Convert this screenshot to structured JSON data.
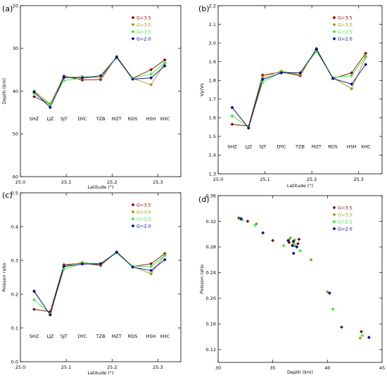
{
  "figure": {
    "panels": [
      {
        "id": "a",
        "panel_label": "(a)",
        "type": "line",
        "xlabel": "Latitude (°)",
        "ylabel": "Depth (km)",
        "xlim": [
          25.0,
          25.35
        ],
        "ylim": [
          20,
          60
        ],
        "y_inverted": true,
        "xticks": [
          25.0,
          25.1,
          25.2,
          25.3
        ],
        "xtick_labels": [
          "25.0",
          "25.1",
          "25.2",
          "25.3"
        ],
        "yticks": [
          20,
          30,
          40,
          50,
          60
        ],
        "ytick_labels": [
          "20",
          "30",
          "40",
          "50",
          "60"
        ],
        "station_label_value": 46.5,
        "stations": [
          "SHZ",
          "LJZ",
          "SJT",
          "DYC",
          "TZB",
          "MZT",
          "RDS",
          "HSH",
          "XHC"
        ],
        "x": [
          25.03,
          25.065,
          25.095,
          25.135,
          25.175,
          25.21,
          25.245,
          25.285,
          25.315
        ],
        "legend_position": "top-right",
        "series": [
          {
            "name": "G=3.5",
            "color": "#8b0000",
            "values": [
              41.3,
              43.1,
              36.5,
              37.4,
              37.3,
              31.9,
              37.0,
              35.0,
              32.7
            ]
          },
          {
            "name": "G=3.0",
            "color": "#9a9a00",
            "values": [
              40.0,
              43.0,
              36.8,
              36.6,
              36.9,
              32.0,
              37.0,
              38.5,
              33.5
            ]
          },
          {
            "name": "G=2.5",
            "color": "#33ee33",
            "values": [
              40.5,
              43.2,
              37.5,
              37.0,
              36.5,
              32.2,
              37.0,
              36.0,
              33.4
            ]
          },
          {
            "name": "G=2.0",
            "color": "#0000a0",
            "values": [
              40.2,
              43.8,
              36.8,
              36.9,
              36.4,
              32.1,
              37.2,
              36.9,
              34.1
            ]
          }
        ]
      },
      {
        "id": "b",
        "panel_label": "(b)",
        "type": "line",
        "xlabel": "Latitude (°)",
        "ylabel": "Vp/Vs",
        "xlim": [
          25.0,
          25.35
        ],
        "ylim": [
          1.3,
          2.2
        ],
        "y_inverted": false,
        "xticks": [
          25.0,
          25.1,
          25.2,
          25.3
        ],
        "xtick_labels": [
          "25.0",
          "25.1",
          "25.2",
          "25.3"
        ],
        "yticks": [
          1.3,
          1.4,
          1.5,
          1.6,
          1.7,
          1.8,
          1.9,
          2.0,
          2.1,
          2.2
        ],
        "ytick_labels": [
          "1.3",
          "1.4",
          "1.5",
          "1.6",
          "1.7",
          "1.8",
          "1.9",
          "2.0",
          "2.1",
          "2.2"
        ],
        "station_label_value": 1.445,
        "stations": [
          "SHZ",
          "LJZ",
          "SJT",
          "DYC",
          "TZB",
          "MZT",
          "RDS",
          "HSH",
          "XHC"
        ],
        "x": [
          25.03,
          25.065,
          25.095,
          25.135,
          25.175,
          25.21,
          25.245,
          25.285,
          25.315
        ],
        "legend_position": "top-right",
        "series": [
          {
            "name": "G=3.5",
            "color": "#8b0000",
            "values": [
              1.565,
              1.555,
              1.828,
              1.845,
              1.825,
              1.97,
              1.81,
              1.84,
              1.945
            ]
          },
          {
            "name": "G=3.0",
            "color": "#9a9a00",
            "values": [
              1.655,
              1.545,
              1.815,
              1.85,
              1.83,
              1.965,
              1.815,
              1.755,
              1.925
            ]
          },
          {
            "name": "G=2.5",
            "color": "#33ee33",
            "values": [
              1.61,
              1.55,
              1.79,
              1.845,
              1.84,
              1.955,
              1.815,
              1.825,
              1.93
            ]
          },
          {
            "name": "G=2.0",
            "color": "#0000a0",
            "values": [
              1.655,
              1.545,
              1.805,
              1.84,
              1.84,
              1.965,
              1.81,
              1.78,
              1.885
            ]
          }
        ]
      },
      {
        "id": "c",
        "panel_label": "(c)",
        "type": "line",
        "xlabel": "Latitude (°)",
        "ylabel": "Poisson ratio",
        "xlim": [
          25.0,
          25.35
        ],
        "ylim": [
          0.0,
          0.5
        ],
        "y_inverted": false,
        "xticks": [
          25.0,
          25.1,
          25.2,
          25.3
        ],
        "xtick_labels": [
          "25.0",
          "25.1",
          "25.2",
          "25.3"
        ],
        "yticks": [
          0.0,
          0.1,
          0.2,
          0.3,
          0.4,
          0.5
        ],
        "ytick_labels": [
          "0.0",
          "0.1",
          "0.2",
          "0.3",
          "0.4",
          "0.5"
        ],
        "station_label_value": 0.075,
        "stations": [
          "SHZ",
          "LJZ",
          "SJT",
          "DYC",
          "TZB",
          "MZT",
          "RDS",
          "HSH",
          "XHC"
        ],
        "x": [
          25.03,
          25.065,
          25.095,
          25.135,
          25.175,
          25.21,
          25.245,
          25.285,
          25.315
        ],
        "legend_position": "top-right",
        "series": [
          {
            "name": "G=3.5",
            "color": "#8b0000",
            "values": [
              0.155,
              0.148,
              0.287,
              0.292,
              0.285,
              0.325,
              0.282,
              0.29,
              0.32
            ]
          },
          {
            "name": "G=3.0",
            "color": "#9a9a00",
            "values": [
              0.21,
              0.138,
              0.283,
              0.294,
              0.287,
              0.324,
              0.282,
              0.26,
              0.316
            ]
          },
          {
            "name": "G=2.5",
            "color": "#33ee33",
            "values": [
              0.183,
              0.142,
              0.274,
              0.291,
              0.291,
              0.322,
              0.283,
              0.282,
              0.314
            ]
          },
          {
            "name": "G=2.0",
            "color": "#0000a0",
            "values": [
              0.208,
              0.139,
              0.282,
              0.289,
              0.29,
              0.324,
              0.28,
              0.27,
              0.302
            ]
          }
        ]
      },
      {
        "id": "d",
        "panel_label": "(d)",
        "type": "scatter",
        "xlabel": "Depth (km)",
        "ylabel": "Poisson ratio",
        "xlim": [
          30,
          45
        ],
        "ylim": [
          0.1,
          0.36
        ],
        "y_inverted": false,
        "xticks": [
          30,
          35,
          40,
          45
        ],
        "xtick_labels": [
          "30",
          "35",
          "40",
          "45"
        ],
        "yticks": [
          0.12,
          0.16,
          0.2,
          0.24,
          0.28,
          0.32,
          0.36
        ],
        "ytick_labels": [
          "0.12",
          "0.16",
          "0.20",
          "0.24",
          "0.28",
          "0.32",
          "0.36"
        ],
        "legend_position": "top-right",
        "series": [
          {
            "name": "G=3.5",
            "color": "#8b0000",
            "points": [
              [
                31.9,
                0.325
              ],
              [
                32.7,
                0.32
              ],
              [
                35.0,
                0.29
              ],
              [
                36.5,
                0.287
              ],
              [
                37.0,
                0.282
              ],
              [
                37.3,
                0.285
              ],
              [
                37.4,
                0.292
              ],
              [
                41.3,
                0.155
              ],
              [
                43.1,
                0.148
              ]
            ]
          },
          {
            "name": "G=3.0",
            "color": "#9a9a00",
            "points": [
              [
                32.0,
                0.324
              ],
              [
                33.5,
                0.316
              ],
              [
                36.6,
                0.294
              ],
              [
                36.8,
                0.283
              ],
              [
                36.9,
                0.287
              ],
              [
                37.0,
                0.282
              ],
              [
                38.5,
                0.26
              ],
              [
                40.0,
                0.21
              ],
              [
                43.0,
                0.138
              ]
            ]
          },
          {
            "name": "G=2.5",
            "color": "#33ee33",
            "points": [
              [
                32.2,
                0.322
              ],
              [
                33.4,
                0.314
              ],
              [
                36.0,
                0.282
              ],
              [
                36.5,
                0.291
              ],
              [
                37.0,
                0.291
              ],
              [
                37.0,
                0.283
              ],
              [
                37.5,
                0.274
              ],
              [
                40.5,
                0.183
              ],
              [
                43.2,
                0.142
              ]
            ]
          },
          {
            "name": "G=2.0",
            "color": "#0000a0",
            "points": [
              [
                32.1,
                0.324
              ],
              [
                34.1,
                0.302
              ],
              [
                36.4,
                0.29
              ],
              [
                36.8,
                0.282
              ],
              [
                36.9,
                0.289
              ],
              [
                36.9,
                0.27
              ],
              [
                37.2,
                0.28
              ],
              [
                40.2,
                0.208
              ],
              [
                43.8,
                0.139
              ]
            ]
          }
        ]
      }
    ]
  }
}
